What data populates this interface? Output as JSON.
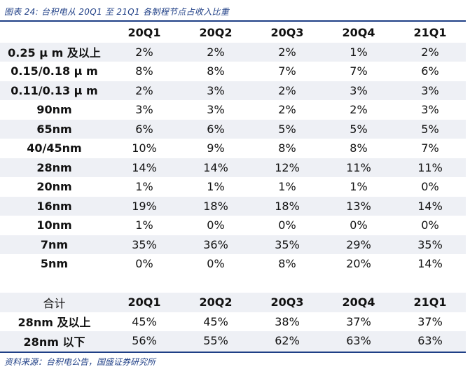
{
  "caption": "图表 24:  台积电从 20Q1 至 21Q1 各制程节点占收入比重",
  "source": "资料来源：台积电公告，国盛证券研究所",
  "columns": [
    "20Q1",
    "20Q2",
    "20Q3",
    "20Q4",
    "21Q1"
  ],
  "rows": [
    {
      "label": "0.25 μ m 及以上",
      "values": [
        "2%",
        "2%",
        "2%",
        "1%",
        "2%"
      ]
    },
    {
      "label": "0.15/0.18 μ m",
      "values": [
        "8%",
        "8%",
        "7%",
        "7%",
        "6%"
      ]
    },
    {
      "label": "0.11/0.13 μ m",
      "values": [
        "2%",
        "3%",
        "2%",
        "3%",
        "3%"
      ]
    },
    {
      "label": "90nm",
      "values": [
        "3%",
        "3%",
        "2%",
        "2%",
        "3%"
      ]
    },
    {
      "label": "65nm",
      "values": [
        "6%",
        "6%",
        "5%",
        "5%",
        "5%"
      ]
    },
    {
      "label": "40/45nm",
      "values": [
        "10%",
        "9%",
        "8%",
        "8%",
        "7%"
      ]
    },
    {
      "label": "28nm",
      "values": [
        "14%",
        "14%",
        "12%",
        "11%",
        "11%"
      ]
    },
    {
      "label": "20nm",
      "values": [
        "1%",
        "1%",
        "1%",
        "1%",
        "0%"
      ]
    },
    {
      "label": "16nm",
      "values": [
        "19%",
        "18%",
        "18%",
        "13%",
        "14%"
      ]
    },
    {
      "label": "10nm",
      "values": [
        "1%",
        "0%",
        "0%",
        "0%",
        "0%"
      ]
    },
    {
      "label": "7nm",
      "values": [
        "35%",
        "36%",
        "35%",
        "29%",
        "35%"
      ]
    },
    {
      "label": "5nm",
      "values": [
        "0%",
        "0%",
        "8%",
        "20%",
        "14%"
      ]
    }
  ],
  "summary_header": {
    "label": "合计",
    "columns": [
      "20Q1",
      "20Q2",
      "20Q3",
      "20Q4",
      "21Q1"
    ]
  },
  "summary_rows": [
    {
      "label": "28nm 及以上",
      "values": [
        "45%",
        "45%",
        "38%",
        "37%",
        "37%"
      ]
    },
    {
      "label": "28nm 以下",
      "values": [
        "56%",
        "55%",
        "62%",
        "63%",
        "63%"
      ]
    }
  ]
}
